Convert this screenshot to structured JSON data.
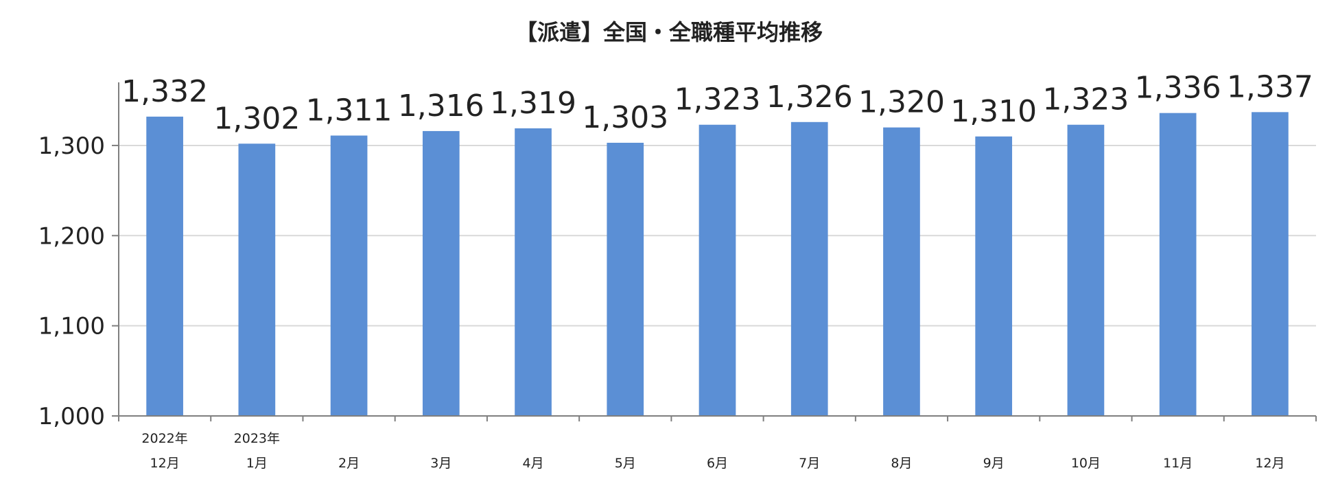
{
  "chart_data": {
    "type": "bar",
    "title": "【派遣】全国・全職種平均推移",
    "categories": [
      [
        "2022年",
        "12月"
      ],
      [
        "2023年",
        "1月"
      ],
      [
        "",
        "2月"
      ],
      [
        "",
        "3月"
      ],
      [
        "",
        "4月"
      ],
      [
        "",
        "5月"
      ],
      [
        "",
        "6月"
      ],
      [
        "",
        "7月"
      ],
      [
        "",
        "8月"
      ],
      [
        "",
        "9月"
      ],
      [
        "",
        "10月"
      ],
      [
        "",
        "11月"
      ],
      [
        "",
        "12月"
      ]
    ],
    "values": [
      1332,
      1302,
      1311,
      1316,
      1319,
      1303,
      1323,
      1326,
      1320,
      1310,
      1323,
      1336,
      1337
    ],
    "value_labels": [
      "1,332",
      "1,302",
      "1,311",
      "1,316",
      "1,319",
      "1,303",
      "1,323",
      "1,326",
      "1,320",
      "1,310",
      "1,323",
      "1,336",
      "1,337"
    ],
    "yticks": [
      1000,
      1100,
      1200,
      1300
    ],
    "ytick_labels": [
      "1,000",
      "1,100",
      "1,200",
      "1,300"
    ],
    "ylim": [
      1000,
      1370
    ],
    "grid": true,
    "bar_color": "#5B8FD5",
    "grid_color": "#D9D9D9",
    "axis_color": "#7F7F7F"
  }
}
